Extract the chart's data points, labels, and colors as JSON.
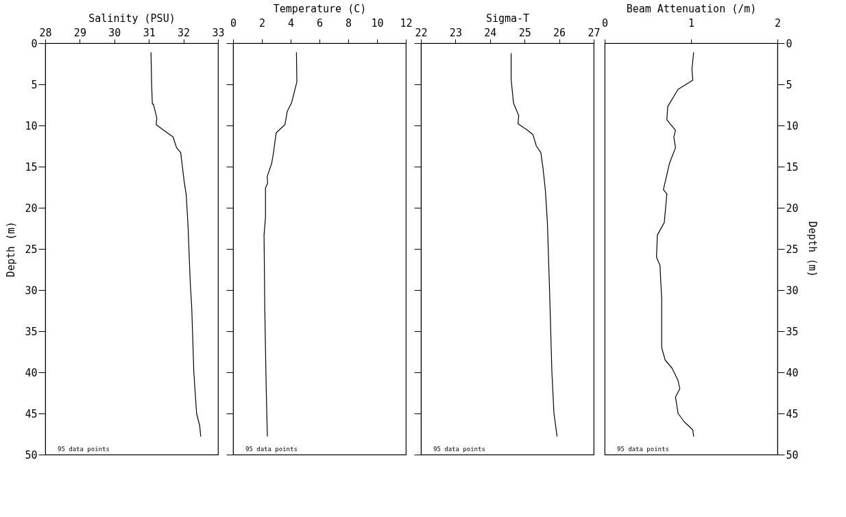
{
  "chart_data": [
    {
      "type": "line",
      "xlabel": "Salinity (PSU)",
      "ylabel": "Depth (m)",
      "xlim": [
        28,
        33
      ],
      "xticks": [
        28,
        29,
        30,
        31,
        32,
        33
      ],
      "ylim": [
        50,
        0
      ],
      "yticks": [
        0,
        5,
        10,
        15,
        20,
        25,
        30,
        35,
        40,
        45,
        50
      ],
      "marker": "none",
      "line_style": "solid",
      "annotations": [
        "95 data points"
      ],
      "series": [
        {
          "color": "#000000",
          "x": [
            31.06,
            31.08,
            31.1,
            31.13,
            31.23,
            31.21,
            31.47,
            31.7,
            31.8,
            31.92,
            32.02,
            32.08,
            32.13,
            32.2,
            32.24,
            32.3,
            32.38,
            32.47,
            32.5
          ],
          "values": [
            1.1,
            5.2,
            7.4,
            7.4,
            9.1,
            9.9,
            10.7,
            11.4,
            12.7,
            13.3,
            16.8,
            18.4,
            22,
            29.4,
            32.2,
            40,
            45,
            46.5,
            47.8
          ]
        }
      ]
    },
    {
      "type": "line",
      "xlabel": "Temperature (C)",
      "xlim": [
        0,
        12
      ],
      "xticks": [
        0,
        2,
        4,
        6,
        8,
        10,
        12
      ],
      "ylim": [
        50,
        0
      ],
      "yticks": [
        0,
        5,
        10,
        15,
        20,
        25,
        30,
        35,
        40,
        45,
        50
      ],
      "tick_labels": "x",
      "marker": "none",
      "line_style": "solid",
      "annotations": [
        "95 data points"
      ],
      "series": [
        {
          "color": "#000000",
          "x": [
            4.4,
            4.43,
            4.07,
            3.76,
            3.6,
            2.99,
            2.79,
            2.68,
            2.37,
            2.4,
            2.25,
            2.25,
            2.15,
            2.2,
            2.3,
            2.38
          ],
          "values": [
            1.1,
            4.7,
            7.2,
            8.3,
            9.9,
            10.9,
            13.5,
            14.6,
            16.2,
            17,
            17.6,
            21.2,
            23.3,
            32.2,
            42,
            47.8
          ]
        }
      ]
    },
    {
      "type": "line",
      "xlabel": "Sigma-T",
      "xlim": [
        22,
        27
      ],
      "xticks": [
        22,
        23,
        24,
        25,
        26,
        27
      ],
      "ylim": [
        50,
        0
      ],
      "yticks": [
        0,
        5,
        10,
        15,
        20,
        25,
        30,
        35,
        40,
        45,
        50
      ],
      "tick_labels": "x",
      "marker": "none",
      "line_style": "solid",
      "annotations": [
        "95 data points"
      ],
      "series": [
        {
          "color": "#000000",
          "x": [
            24.61,
            24.61,
            24.68,
            24.83,
            24.81,
            25.06,
            25.24,
            25.34,
            25.47,
            25.53,
            25.6,
            25.66,
            25.72,
            25.79,
            25.85,
            25.94
          ],
          "values": [
            1.2,
            4.4,
            7.3,
            8.8,
            9.8,
            10.5,
            11.1,
            12.5,
            13.3,
            15.1,
            17.8,
            21.8,
            29.7,
            40,
            45,
            47.8
          ]
        }
      ]
    },
    {
      "type": "line",
      "xlabel": "Beam Attenuation (/m)",
      "ylabel": "Depth (m)",
      "xlim": [
        0,
        2
      ],
      "xticks": [
        0,
        1,
        2
      ],
      "ylim": [
        50,
        0
      ],
      "yticks": [
        0,
        5,
        10,
        15,
        20,
        25,
        30,
        35,
        40,
        45,
        50
      ],
      "marker": "none",
      "line_style": "solid",
      "annotations": [
        "95 data points"
      ],
      "series": [
        {
          "color": "#000000",
          "x": [
            1.03,
            1.01,
            1.02,
            0.85,
            0.73,
            0.72,
            0.82,
            0.8,
            0.82,
            0.75,
            0.68,
            0.72,
            0.69,
            0.61,
            0.6,
            0.64,
            0.66,
            0.66,
            0.66,
            0.7,
            0.78,
            0.85,
            0.87,
            0.82,
            0.85,
            0.92,
            1.02,
            1.03
          ],
          "values": [
            1.1,
            3.2,
            4.5,
            5.6,
            7.7,
            9.3,
            10.6,
            11.4,
            12.7,
            14.6,
            17.8,
            18.3,
            21.8,
            23.3,
            26,
            27,
            31.1,
            33,
            37,
            38.5,
            39.5,
            41,
            42,
            43,
            45,
            46,
            47,
            47.8
          ]
        }
      ]
    }
  ]
}
